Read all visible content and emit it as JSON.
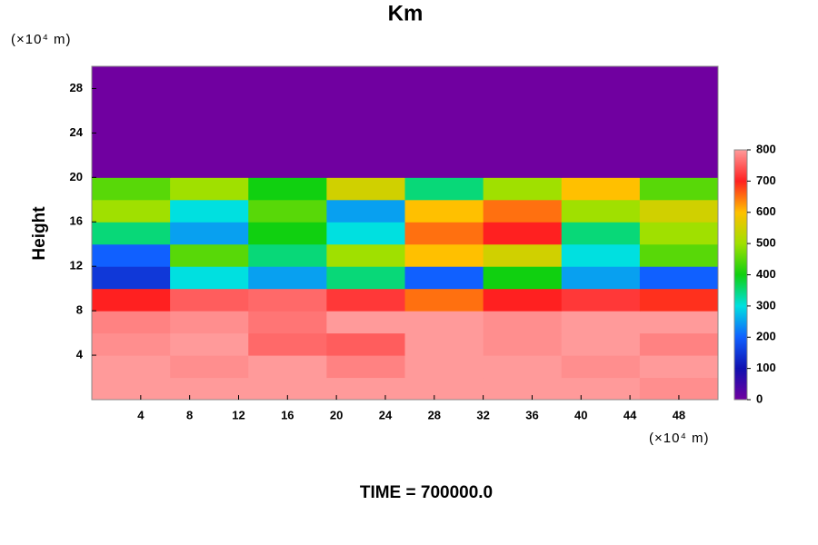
{
  "chart_data": {
    "type": "heatmap",
    "title": "Km",
    "y_unit": "(×10⁴ m)",
    "x_unit": "(×10⁴ m)",
    "ylabel": "Height",
    "footer": "TIME = 700000.0",
    "xlim": [
      0,
      51.2
    ],
    "ylim": [
      0,
      30
    ],
    "xticks": [
      4,
      8,
      12,
      16,
      20,
      24,
      28,
      32,
      36,
      40,
      44,
      48
    ],
    "yticks": [
      4,
      8,
      12,
      16,
      20,
      24,
      28
    ],
    "x_edges": [
      0,
      6.4,
      12.8,
      19.2,
      25.6,
      32,
      38.4,
      44.8,
      51.2
    ],
    "y_edges": [
      0,
      2,
      4,
      6,
      8,
      10,
      12,
      14,
      16,
      18,
      20,
      22,
      24,
      26,
      28,
      30
    ],
    "z": [
      [
        800,
        800,
        800,
        800,
        800,
        800,
        800,
        790
      ],
      [
        800,
        790,
        800,
        780,
        800,
        800,
        790,
        800
      ],
      [
        790,
        800,
        760,
        750,
        800,
        790,
        800,
        780
      ],
      [
        780,
        790,
        770,
        800,
        800,
        790,
        800,
        800
      ],
      [
        700,
        750,
        760,
        720,
        650,
        700,
        720,
        690
      ],
      [
        150,
        300,
        250,
        350,
        200,
        400,
        250,
        200
      ],
      [
        200,
        450,
        350,
        500,
        600,
        550,
        300,
        450
      ],
      [
        350,
        250,
        400,
        300,
        650,
        700,
        350,
        500
      ],
      [
        500,
        300,
        450,
        250,
        600,
        650,
        500,
        550
      ],
      [
        450,
        500,
        400,
        550,
        350,
        500,
        600,
        450
      ],
      [
        0,
        0,
        0,
        0,
        0,
        0,
        0,
        0
      ],
      [
        0,
        0,
        0,
        0,
        0,
        0,
        0,
        0
      ],
      [
        0,
        0,
        0,
        0,
        0,
        0,
        0,
        0
      ],
      [
        0,
        0,
        0,
        0,
        0,
        0,
        0,
        0
      ],
      [
        0,
        0,
        0,
        0,
        0,
        0,
        0,
        0
      ]
    ],
    "clim": [
      0,
      800
    ],
    "cticks": [
      0,
      100,
      200,
      300,
      400,
      500,
      600,
      700,
      800
    ],
    "colorscale": [
      "#7000a0",
      "#1010b0",
      "#1060ff",
      "#00e0e0",
      "#10d010",
      "#a0e000",
      "#ffc000",
      "#ff2020",
      "#ff9a9a"
    ]
  }
}
